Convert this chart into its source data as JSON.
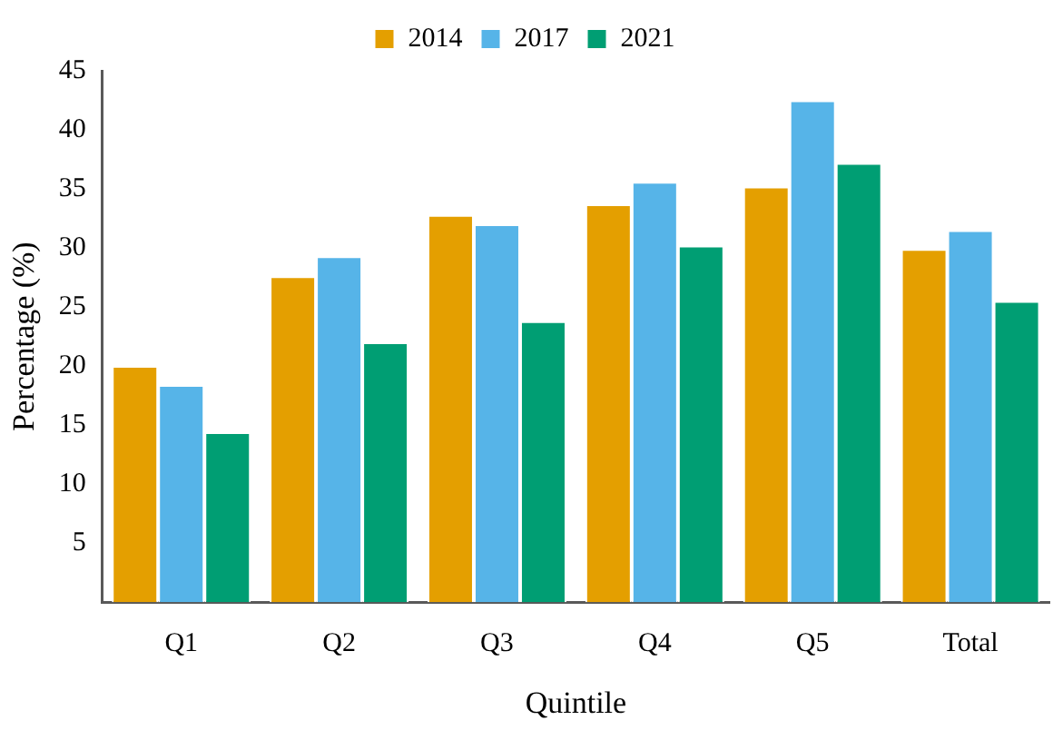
{
  "chart_data": {
    "type": "bar",
    "xlabel": "Quintile",
    "ylabel": "Percentage (%)",
    "categories": [
      "Q1",
      "Q2",
      "Q3",
      "Q4",
      "Q5",
      "Total"
    ],
    "series": [
      {
        "name": "2014",
        "color": "#e49f00",
        "values": [
          20.0,
          27.6,
          32.8,
          33.7,
          35.2,
          29.9
        ]
      },
      {
        "name": "2017",
        "color": "#56b4e8",
        "values": [
          18.4,
          29.3,
          32.0,
          35.6,
          42.5,
          31.5
        ]
      },
      {
        "name": "2021",
        "color": "#009e73",
        "values": [
          14.4,
          22.0,
          23.8,
          30.2,
          37.2,
          25.5
        ]
      }
    ],
    "ylim": [
      0,
      45
    ],
    "yticks": [
      5,
      10,
      15,
      20,
      25,
      30,
      35,
      40,
      45
    ],
    "grid": false,
    "legend": "top"
  }
}
